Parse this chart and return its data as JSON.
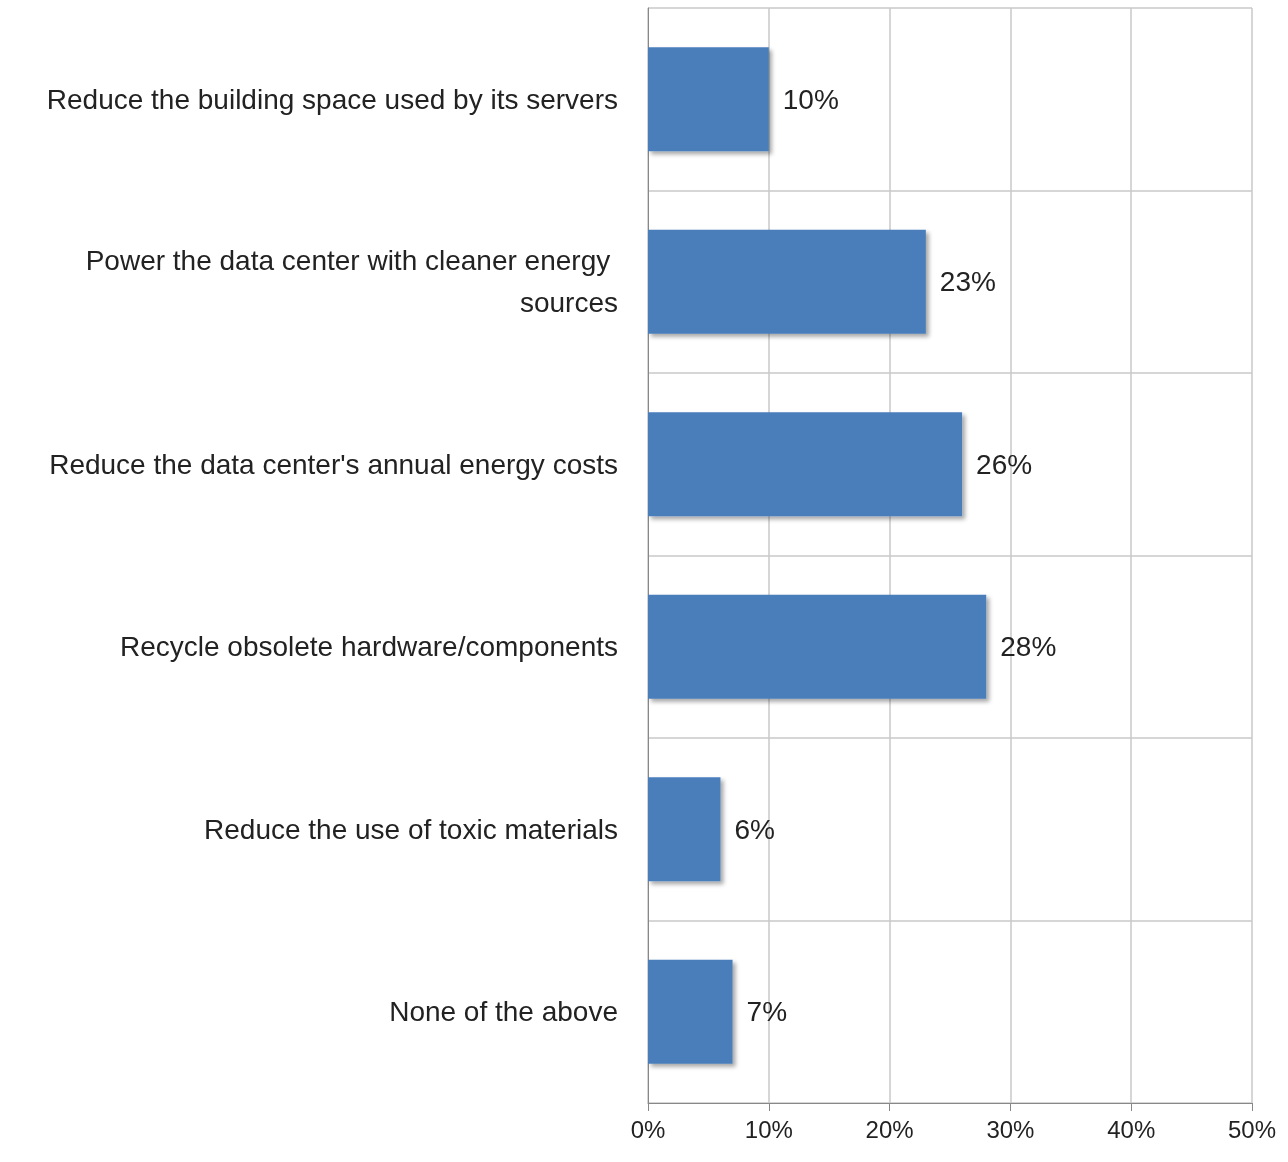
{
  "chart_data": {
    "type": "bar",
    "orientation": "horizontal",
    "categories": [
      "Reduce the building space used by its servers",
      "Power the data center with cleaner energy sources",
      "Reduce the data center's annual energy costs",
      "Recycle obsolete hardware/components",
      "Reduce the use of toxic materials",
      "None of the above"
    ],
    "values": [
      10,
      23,
      26,
      28,
      6,
      7
    ],
    "value_labels": [
      "10%",
      "23%",
      "26%",
      "28%",
      "6%",
      "7%"
    ],
    "color": "#4a7ebb",
    "xlim": [
      0,
      50
    ],
    "xticks": [
      {
        "value": 0,
        "label": "0%"
      },
      {
        "value": 10,
        "label": "10%"
      },
      {
        "value": 20,
        "label": "20%"
      },
      {
        "value": 30,
        "label": "30%"
      },
      {
        "value": 40,
        "label": "40%"
      },
      {
        "value": 50,
        "label": "50%"
      }
    ],
    "grid": true
  }
}
